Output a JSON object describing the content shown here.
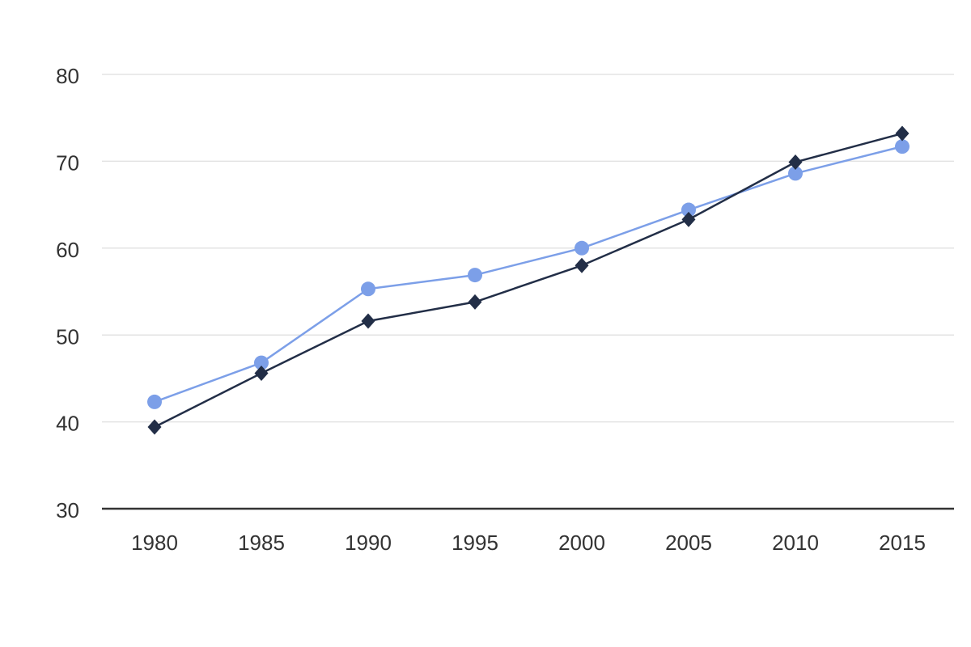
{
  "chart_data": {
    "type": "line",
    "title": "",
    "xlabel": "",
    "ylabel": "",
    "categories": [
      "1980",
      "1985",
      "1990",
      "1995",
      "2000",
      "2005",
      "2010",
      "2015"
    ],
    "series": [
      {
        "name": "series-blue-circles",
        "marker": "circle",
        "color": "#7C9FE8",
        "values": [
          42.3,
          46.8,
          55.3,
          56.9,
          60.0,
          64.4,
          68.6,
          71.7
        ]
      },
      {
        "name": "series-navy-diamonds",
        "marker": "diamond",
        "color": "#222E47",
        "values": [
          39.4,
          45.6,
          51.6,
          53.8,
          58.0,
          63.3,
          69.9,
          73.2
        ]
      }
    ],
    "ylim": [
      30,
      80
    ],
    "yticks": [
      30,
      40,
      50,
      60,
      70,
      80
    ],
    "grid": true,
    "legend_position": "none"
  },
  "style": {
    "background": "#FFFFFF",
    "gridline_color": "#E3E3E3",
    "axis_line_color": "#333333",
    "tick_label_color": "#333333"
  }
}
